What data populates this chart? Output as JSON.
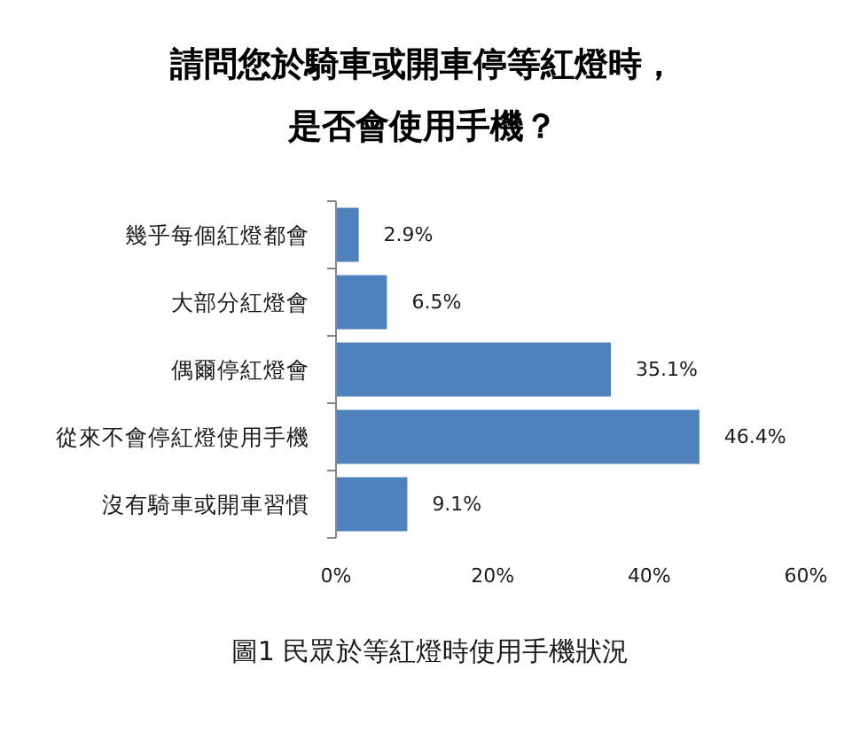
{
  "chart_data": {
    "type": "bar",
    "orientation": "horizontal",
    "title": "請問您於騎車或開車停等紅燈時，是否會使用手機？",
    "categories": [
      "幾乎每個紅燈都會",
      "大部分紅燈會",
      "偶爾停紅燈會",
      "從來不會停紅燈使用手機",
      "沒有騎車或開車習慣"
    ],
    "values": [
      2.9,
      6.5,
      35.1,
      46.4,
      9.1
    ],
    "color": "#4f81bd",
    "value_labels": [
      "2.9%",
      "6.5%",
      "35.1%",
      "46.4%",
      "9.1%"
    ],
    "xlim": [
      0,
      60
    ],
    "xticks": [
      {
        "value": 0,
        "label": "0%"
      },
      {
        "value": 20,
        "label": "20%"
      },
      {
        "value": 40,
        "label": "40%"
      },
      {
        "value": 60,
        "label": "60%"
      }
    ],
    "annotations": [
      "圖1 民眾於等紅燈時使用手機狀況"
    ]
  }
}
